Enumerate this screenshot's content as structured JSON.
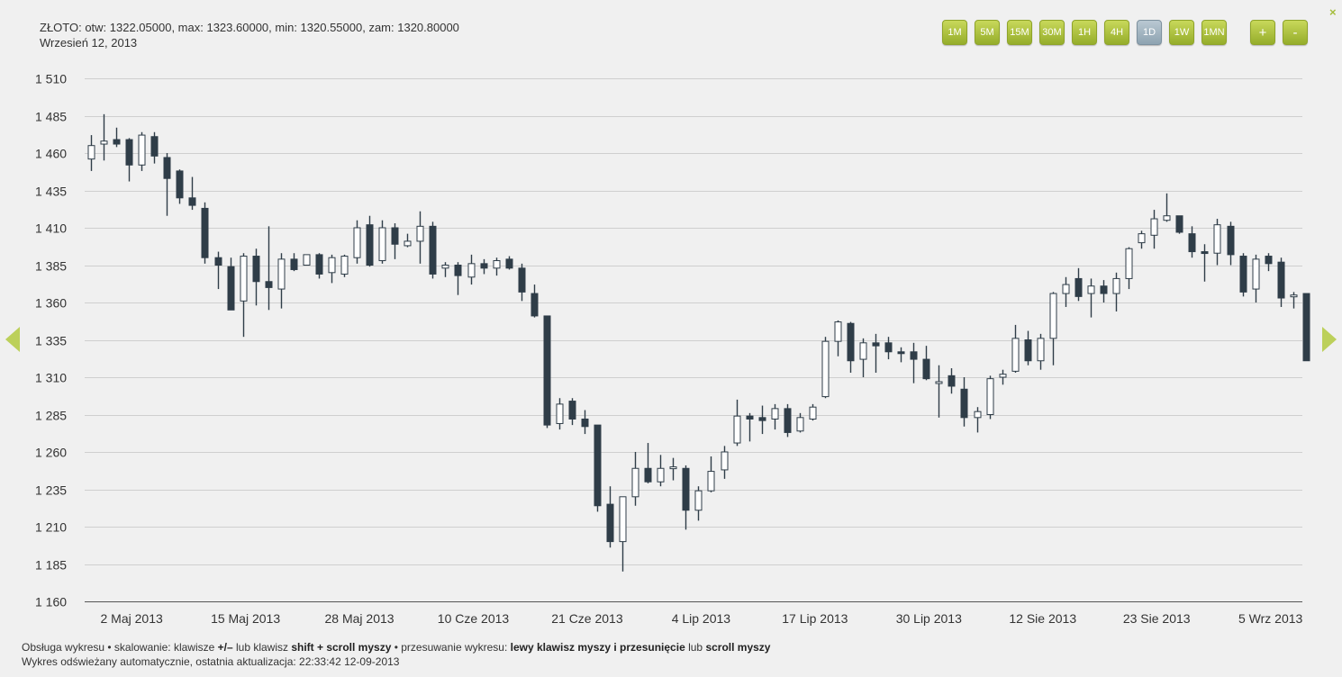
{
  "info": {
    "ohlc_line": "ZŁOTO: otw: 1322.05000, max: 1323.60000, min: 1320.55000, zam: 1320.80000",
    "date_line": "Wrzesień 12, 2013"
  },
  "toolbar": {
    "intervals": [
      "1M",
      "5M",
      "15M",
      "30M",
      "1H",
      "4H",
      "1D",
      "1W",
      "1MN"
    ],
    "active_interval": "1D",
    "zoom_in": "+",
    "zoom_out": "-",
    "close": "×"
  },
  "footer": {
    "line1_a": "Obsługa wykresu • skalowanie: klawisze ",
    "line1_b": "+/–",
    "line1_c": " lub klawisz ",
    "line1_d": "shift + scroll myszy",
    "line1_e": " • przesuwanie wykresu: ",
    "line1_f": "lewy klawisz myszy i przesunięcie",
    "line1_g": " lub ",
    "line1_h": "scroll myszy",
    "line2": "Wykres odświeżany automatycznie, ostatnia aktualizacja: 22:33:42 12-09-2013"
  },
  "colors": {
    "accent": "#a5bd3c",
    "bear_candle": "#2f3d48",
    "bull_candle": "#ffffff",
    "grid": "#cfcfcf"
  },
  "chart_data": {
    "type": "candlestick",
    "instrument": "ZŁOTO",
    "interval": "1D",
    "ylim": [
      1160,
      1510
    ],
    "yticks": [
      1160,
      1185,
      1210,
      1235,
      1260,
      1285,
      1310,
      1335,
      1360,
      1385,
      1410,
      1435,
      1460,
      1485,
      1510
    ],
    "ytick_labels": [
      "1 160",
      "1 185",
      "1 210",
      "1 235",
      "1 260",
      "1 285",
      "1 310",
      "1 335",
      "1 360",
      "1 385",
      "1 410",
      "1 435",
      "1 460",
      "1 485",
      "1 510"
    ],
    "xtick_labels": [
      {
        "label": "2 Maj 2013",
        "index": 3
      },
      {
        "label": "15 Maj 2013",
        "index": 12
      },
      {
        "label": "28 Maj 2013",
        "index": 21
      },
      {
        "label": "10 Cze 2013",
        "index": 30
      },
      {
        "label": "21 Cze 2013",
        "index": 39
      },
      {
        "label": "4 Lip 2013",
        "index": 48
      },
      {
        "label": "17 Lip 2013",
        "index": 57
      },
      {
        "label": "30 Lip 2013",
        "index": 66
      },
      {
        "label": "12 Sie 2013",
        "index": 75
      },
      {
        "label": "23 Sie 2013",
        "index": 84
      },
      {
        "label": "5 Wrz 2013",
        "index": 93
      }
    ],
    "grid": true,
    "candles": [
      {
        "o": 1456,
        "h": 1472,
        "l": 1448,
        "c": 1465
      },
      {
        "o": 1466,
        "h": 1486,
        "l": 1455,
        "c": 1468
      },
      {
        "o": 1469,
        "h": 1477,
        "l": 1464,
        "c": 1466
      },
      {
        "o": 1469,
        "h": 1470,
        "l": 1441,
        "c": 1452
      },
      {
        "o": 1452,
        "h": 1474,
        "l": 1448,
        "c": 1472
      },
      {
        "o": 1471,
        "h": 1474,
        "l": 1453,
        "c": 1458
      },
      {
        "o": 1457,
        "h": 1460,
        "l": 1418,
        "c": 1443
      },
      {
        "o": 1448,
        "h": 1449,
        "l": 1426,
        "c": 1430
      },
      {
        "o": 1430,
        "h": 1444,
        "l": 1422,
        "c": 1425
      },
      {
        "o": 1423,
        "h": 1427,
        "l": 1386,
        "c": 1390
      },
      {
        "o": 1390,
        "h": 1394,
        "l": 1369,
        "c": 1385
      },
      {
        "o": 1384,
        "h": 1390,
        "l": 1355,
        "c": 1355
      },
      {
        "o": 1361,
        "h": 1393,
        "l": 1337,
        "c": 1391
      },
      {
        "o": 1391,
        "h": 1396,
        "l": 1358,
        "c": 1374
      },
      {
        "o": 1374,
        "h": 1411,
        "l": 1355,
        "c": 1370
      },
      {
        "o": 1369,
        "h": 1393,
        "l": 1356,
        "c": 1389
      },
      {
        "o": 1389,
        "h": 1393,
        "l": 1381,
        "c": 1382
      },
      {
        "o": 1385,
        "h": 1392,
        "l": 1385,
        "c": 1392
      },
      {
        "o": 1392,
        "h": 1393,
        "l": 1376,
        "c": 1379
      },
      {
        "o": 1380,
        "h": 1392,
        "l": 1373,
        "c": 1390
      },
      {
        "o": 1379,
        "h": 1392,
        "l": 1377,
        "c": 1391
      },
      {
        "o": 1390,
        "h": 1415,
        "l": 1386,
        "c": 1410
      },
      {
        "o": 1412,
        "h": 1418,
        "l": 1384,
        "c": 1385
      },
      {
        "o": 1388,
        "h": 1415,
        "l": 1386,
        "c": 1410
      },
      {
        "o": 1410,
        "h": 1413,
        "l": 1389,
        "c": 1399
      },
      {
        "o": 1398,
        "h": 1406,
        "l": 1397,
        "c": 1401
      },
      {
        "o": 1401,
        "h": 1421,
        "l": 1386,
        "c": 1411
      },
      {
        "o": 1411,
        "h": 1414,
        "l": 1376,
        "c": 1379
      },
      {
        "o": 1383,
        "h": 1387,
        "l": 1377,
        "c": 1385
      },
      {
        "o": 1385,
        "h": 1387,
        "l": 1365,
        "c": 1378
      },
      {
        "o": 1377,
        "h": 1392,
        "l": 1372,
        "c": 1386
      },
      {
        "o": 1386,
        "h": 1389,
        "l": 1379,
        "c": 1383
      },
      {
        "o": 1383,
        "h": 1390,
        "l": 1378,
        "c": 1388
      },
      {
        "o": 1389,
        "h": 1391,
        "l": 1382,
        "c": 1383
      },
      {
        "o": 1383,
        "h": 1386,
        "l": 1361,
        "c": 1367
      },
      {
        "o": 1366,
        "h": 1372,
        "l": 1350,
        "c": 1351
      },
      {
        "o": 1351,
        "h": 1351,
        "l": 1276,
        "c": 1278
      },
      {
        "o": 1279,
        "h": 1296,
        "l": 1275,
        "c": 1292
      },
      {
        "o": 1294,
        "h": 1296,
        "l": 1278,
        "c": 1282
      },
      {
        "o": 1282,
        "h": 1288,
        "l": 1272,
        "c": 1277
      },
      {
        "o": 1278,
        "h": 1278,
        "l": 1220,
        "c": 1224
      },
      {
        "o": 1225,
        "h": 1237,
        "l": 1196,
        "c": 1200
      },
      {
        "o": 1200,
        "h": 1230,
        "l": 1180,
        "c": 1230
      },
      {
        "o": 1230,
        "h": 1260,
        "l": 1224,
        "c": 1249
      },
      {
        "o": 1249,
        "h": 1266,
        "l": 1239,
        "c": 1240
      },
      {
        "o": 1240,
        "h": 1258,
        "l": 1237,
        "c": 1249
      },
      {
        "o": 1250,
        "h": 1256,
        "l": 1241,
        "c": 1250
      },
      {
        "o": 1249,
        "h": 1251,
        "l": 1208,
        "c": 1221
      },
      {
        "o": 1221,
        "h": 1237,
        "l": 1214,
        "c": 1234
      },
      {
        "o": 1234,
        "h": 1257,
        "l": 1233,
        "c": 1247
      },
      {
        "o": 1248,
        "h": 1264,
        "l": 1242,
        "c": 1260
      },
      {
        "o": 1266,
        "h": 1295,
        "l": 1264,
        "c": 1284
      },
      {
        "o": 1284,
        "h": 1286,
        "l": 1267,
        "c": 1282
      },
      {
        "o": 1283,
        "h": 1291,
        "l": 1272,
        "c": 1281
      },
      {
        "o": 1282,
        "h": 1292,
        "l": 1275,
        "c": 1289
      },
      {
        "o": 1289,
        "h": 1292,
        "l": 1270,
        "c": 1273
      },
      {
        "o": 1274,
        "h": 1286,
        "l": 1273,
        "c": 1283
      },
      {
        "o": 1282,
        "h": 1292,
        "l": 1281,
        "c": 1290
      },
      {
        "o": 1297,
        "h": 1337,
        "l": 1296,
        "c": 1334
      },
      {
        "o": 1334,
        "h": 1348,
        "l": 1324,
        "c": 1347
      },
      {
        "o": 1346,
        "h": 1347,
        "l": 1313,
        "c": 1321
      },
      {
        "o": 1322,
        "h": 1336,
        "l": 1310,
        "c": 1333
      },
      {
        "o": 1333,
        "h": 1339,
        "l": 1313,
        "c": 1331
      },
      {
        "o": 1333,
        "h": 1337,
        "l": 1322,
        "c": 1327
      },
      {
        "o": 1327,
        "h": 1330,
        "l": 1320,
        "c": 1326
      },
      {
        "o": 1327,
        "h": 1333,
        "l": 1306,
        "c": 1322
      },
      {
        "o": 1322,
        "h": 1331,
        "l": 1308,
        "c": 1309
      },
      {
        "o": 1307,
        "h": 1318,
        "l": 1283,
        "c": 1307
      },
      {
        "o": 1311,
        "h": 1316,
        "l": 1299,
        "c": 1304
      },
      {
        "o": 1302,
        "h": 1310,
        "l": 1277,
        "c": 1283
      },
      {
        "o": 1283,
        "h": 1290,
        "l": 1273,
        "c": 1287
      },
      {
        "o": 1285,
        "h": 1311,
        "l": 1282,
        "c": 1309
      },
      {
        "o": 1310,
        "h": 1315,
        "l": 1305,
        "c": 1312
      },
      {
        "o": 1314,
        "h": 1345,
        "l": 1313,
        "c": 1336
      },
      {
        "o": 1335,
        "h": 1341,
        "l": 1318,
        "c": 1321
      },
      {
        "o": 1321,
        "h": 1339,
        "l": 1315,
        "c": 1336
      },
      {
        "o": 1336,
        "h": 1367,
        "l": 1318,
        "c": 1366
      },
      {
        "o": 1366,
        "h": 1377,
        "l": 1357,
        "c": 1372
      },
      {
        "o": 1376,
        "h": 1383,
        "l": 1361,
        "c": 1364
      },
      {
        "o": 1366,
        "h": 1376,
        "l": 1350,
        "c": 1371
      },
      {
        "o": 1371,
        "h": 1375,
        "l": 1360,
        "c": 1366
      },
      {
        "o": 1366,
        "h": 1380,
        "l": 1354,
        "c": 1376
      },
      {
        "o": 1376,
        "h": 1397,
        "l": 1369,
        "c": 1396
      },
      {
        "o": 1400,
        "h": 1408,
        "l": 1396,
        "c": 1406
      },
      {
        "o": 1405,
        "h": 1422,
        "l": 1396,
        "c": 1416
      },
      {
        "o": 1415,
        "h": 1433,
        "l": 1414,
        "c": 1418
      },
      {
        "o": 1418,
        "h": 1418,
        "l": 1406,
        "c": 1407
      },
      {
        "o": 1406,
        "h": 1411,
        "l": 1390,
        "c": 1394
      },
      {
        "o": 1394,
        "h": 1399,
        "l": 1374,
        "c": 1393
      },
      {
        "o": 1393,
        "h": 1416,
        "l": 1385,
        "c": 1412
      },
      {
        "o": 1411,
        "h": 1414,
        "l": 1385,
        "c": 1392
      },
      {
        "o": 1391,
        "h": 1393,
        "l": 1364,
        "c": 1367
      },
      {
        "o": 1369,
        "h": 1392,
        "l": 1360,
        "c": 1389
      },
      {
        "o": 1391,
        "h": 1393,
        "l": 1381,
        "c": 1386
      },
      {
        "o": 1387,
        "h": 1390,
        "l": 1357,
        "c": 1363
      },
      {
        "o": 1364,
        "h": 1367,
        "l": 1356,
        "c": 1365
      },
      {
        "o": 1366,
        "h": 1366,
        "l": 1321,
        "c": 1321
      }
    ]
  }
}
